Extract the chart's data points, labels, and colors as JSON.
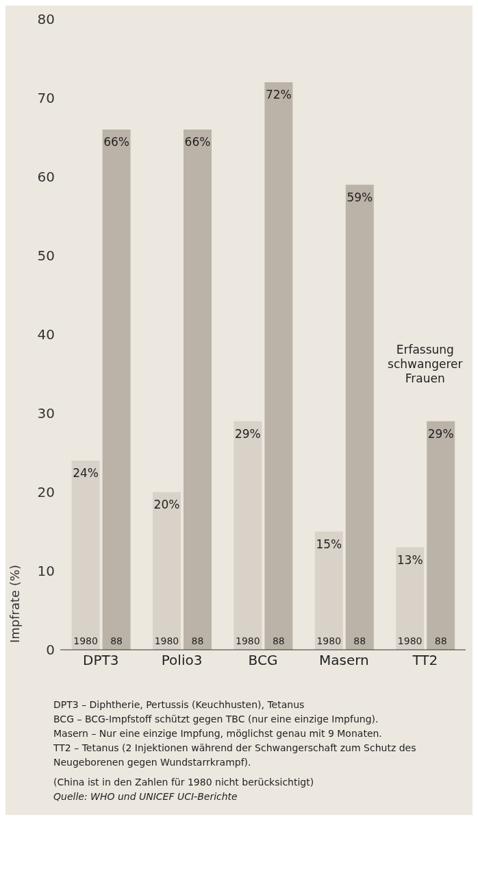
{
  "chart_data": {
    "type": "bar",
    "ylabel": "Impfrate (%)",
    "categories": [
      "DPT3",
      "Polio3",
      "BCG",
      "Masern",
      "TT2"
    ],
    "series": [
      {
        "name": "1980",
        "color": "#d8d2c8",
        "values": [
          24,
          20,
          29,
          15,
          13
        ],
        "value_labels": [
          "24%",
          "20%",
          "29%",
          "15%",
          "13%"
        ]
      },
      {
        "name": "88",
        "color": "#bbb3a8",
        "values": [
          66,
          66,
          72,
          59,
          29
        ],
        "value_labels": [
          "66%",
          "66%",
          "72%",
          "59%",
          "29%"
        ]
      }
    ],
    "ylim": [
      0,
      80
    ],
    "yticks": [
      0,
      10,
      20,
      30,
      40,
      50,
      60,
      70,
      80
    ],
    "grid": false,
    "legend": false,
    "annotations": [
      "Erfassung schwangerer Frauen",
      "DPT3 – Diphtherie, Pertussis (Keuchhusten), Tetanus",
      "BCG – BCG-Impfstoff schützt gegen TBC (nur eine einzige Impfung).",
      "Masern – Nur eine einzige Impfung, möglichst genau mit 9 Monaten.",
      "TT2 – Tetanus (2 Injektionen während der Schwangerschaft zum Schutz des Neugeborenen gegen Wundstarrkrampf).",
      "(China ist in den Zahlen für 1980 nicht berücksichtigt)",
      "Quelle: WHO und UNICEF UCI-Berichte"
    ]
  }
}
